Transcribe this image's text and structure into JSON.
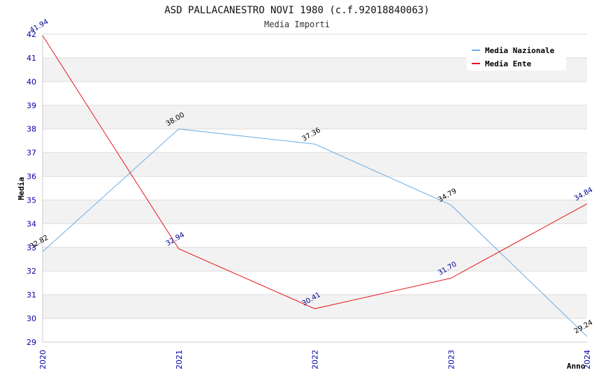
{
  "chart_data": {
    "type": "line",
    "title": "ASD PALLACANESTRO NOVI 1980 (c.f.92018840063)",
    "subtitle": "Media Importi",
    "xlabel": "Anno",
    "ylabel": "Media",
    "categories": [
      "2020",
      "2021",
      "2022",
      "2023",
      "2024"
    ],
    "ylim": [
      29,
      42
    ],
    "yticks": [
      "29",
      "30",
      "31",
      "32",
      "33",
      "34",
      "35",
      "36",
      "37",
      "38",
      "39",
      "40",
      "41",
      "42"
    ],
    "grid": "alternating horizontal bands",
    "legend_position": "top-right",
    "series": [
      {
        "name": "Media Nazionale",
        "color": "#6aaee8",
        "label_color": "#000000",
        "values": [
          32.82,
          38.0,
          37.36,
          34.79,
          29.24
        ],
        "labels": [
          "32.82",
          "38.00",
          "37.36",
          "34.79",
          "29.24"
        ]
      },
      {
        "name": "Media Ente",
        "color": "#e8141c",
        "label_color": "#00008b",
        "values": [
          41.94,
          32.94,
          30.41,
          31.7,
          34.84
        ],
        "labels": [
          "41.94",
          "32.94",
          "30.41",
          "31.70",
          "34.84"
        ]
      }
    ]
  }
}
